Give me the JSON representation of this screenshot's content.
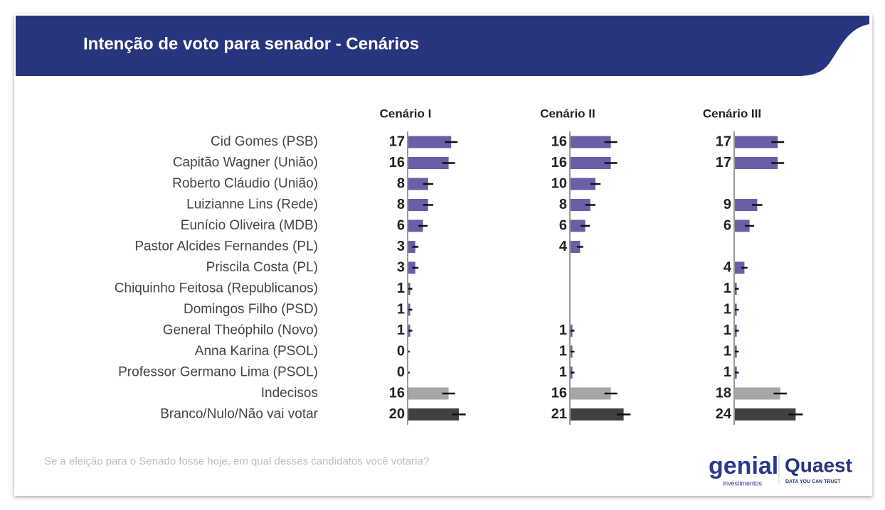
{
  "chart_data": {
    "type": "bar",
    "title": "Intenção de voto para senador - Cenários",
    "subtitle": "Se a eleição para o Senado fosse hoje, em qual desses candidatos você votaria?",
    "categories": [
      "Cid Gomes (PSB)",
      "Capitão Wagner (União)",
      "Roberto Cláudio (União)",
      "Luizianne Lins (Rede)",
      "Eunício Oliveira (MDB)",
      "Pastor Alcides Fernandes (PL)",
      "Priscila Costa (PL)",
      "Chiquinho Feitosa (Republicanos)",
      "Domingos Filho (PSD)",
      "General Theóphilo (Novo)",
      "Anna Karina (PSOL)",
      "Professor Germano Lima (PSOL)",
      "Indecisos",
      "Branco/Nulo/Não vai votar"
    ],
    "colors": [
      "#6a5fa6",
      "#6a5fa6",
      "#6a5fa6",
      "#6a5fa6",
      "#6a5fa6",
      "#6a5fa6",
      "#6a5fa6",
      "#6a5fa6",
      "#6a5fa6",
      "#6a5fa6",
      "#6a5fa6",
      "#6a5fa6",
      "#a6a6a6",
      "#404040"
    ],
    "series": [
      {
        "name": "Cenário I",
        "values": [
          17,
          16,
          8,
          8,
          6,
          3,
          3,
          1,
          1,
          1,
          0,
          0,
          16,
          20
        ],
        "errors": [
          2.5,
          2.5,
          2,
          2,
          1.8,
          1.2,
          1.2,
          0.8,
          0.8,
          0.8,
          0.8,
          0.8,
          2.5,
          2.7
        ]
      },
      {
        "name": "Cenário II",
        "values": [
          16,
          16,
          10,
          8,
          6,
          4,
          null,
          null,
          null,
          1,
          1,
          1,
          16,
          21
        ],
        "errors": [
          2.5,
          2.5,
          2,
          2,
          1.8,
          1.2,
          null,
          null,
          null,
          0.8,
          0.8,
          0.8,
          2.5,
          2.7
        ]
      },
      {
        "name": "Cenário III",
        "values": [
          17,
          17,
          null,
          9,
          6,
          null,
          4,
          1,
          1,
          1,
          1,
          1,
          18,
          24
        ],
        "errors": [
          2.5,
          2.5,
          null,
          2,
          1.8,
          null,
          1.2,
          0.8,
          0.8,
          0.8,
          0.8,
          0.8,
          2.6,
          2.8
        ]
      }
    ]
  },
  "logos": {
    "genial": "genial",
    "genial_sub": "investimentos",
    "quaest": "Quaest",
    "quaest_sub": "DATA YOU CAN TRUST"
  }
}
